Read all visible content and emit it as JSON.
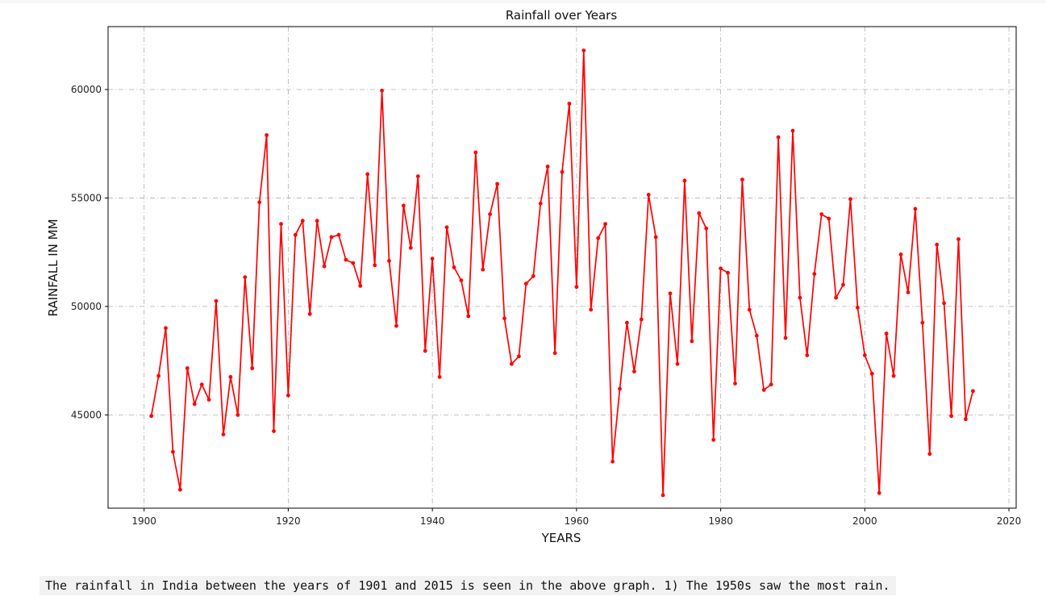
{
  "chart_data": {
    "type": "line",
    "title": "Rainfall over Years",
    "xlabel": "YEARS",
    "ylabel": "RAINFALL IN MM",
    "xlim": [
      1895,
      2021
    ],
    "ylim": [
      40700,
      62900
    ],
    "xticks": [
      1900,
      1920,
      1940,
      1960,
      1980,
      2000,
      2020
    ],
    "yticks": [
      45000,
      50000,
      55000,
      60000
    ],
    "grid": true,
    "grid_style": "dash-dot",
    "line_color": "#ff0000",
    "marker": "circle",
    "series": [
      {
        "x": [
          1901,
          1902,
          1903,
          1904,
          1905,
          1906,
          1907,
          1908,
          1909,
          1910,
          1911,
          1912,
          1913,
          1914,
          1915,
          1916,
          1917,
          1918,
          1919,
          1920,
          1921,
          1922,
          1923,
          1924,
          1925,
          1926,
          1927,
          1928,
          1929,
          1930,
          1931,
          1932,
          1933,
          1934,
          1935,
          1936,
          1937,
          1938,
          1939,
          1940,
          1941,
          1942,
          1943,
          1944,
          1945,
          1946,
          1947,
          1948,
          1949,
          1950,
          1951,
          1952,
          1953,
          1954,
          1955,
          1956,
          1957,
          1958,
          1959,
          1960,
          1961,
          1962,
          1963,
          1964,
          1965,
          1966,
          1967,
          1968,
          1969,
          1970,
          1971,
          1972,
          1973,
          1974,
          1975,
          1976,
          1977,
          1978,
          1979,
          1980,
          1981,
          1982,
          1983,
          1984,
          1985,
          1986,
          1987,
          1988,
          1989,
          1990,
          1991,
          1992,
          1993,
          1994,
          1995,
          1996,
          1997,
          1998,
          1999,
          2000,
          2001,
          2002,
          2003,
          2004,
          2005,
          2006,
          2007,
          2008,
          2009,
          2010,
          2011,
          2012,
          2013,
          2014,
          2015
        ],
        "y": [
          44950,
          46800,
          49000,
          43300,
          41550,
          47150,
          45500,
          46400,
          45700,
          50250,
          44100,
          46750,
          45000,
          51350,
          47150,
          54800,
          57900,
          44250,
          53800,
          45900,
          53300,
          53950,
          49650,
          53950,
          51850,
          53200,
          53300,
          52150,
          52000,
          50950,
          56100,
          51900,
          59950,
          52100,
          49100,
          54650,
          52700,
          56000,
          47950,
          52200,
          46750,
          53650,
          51800,
          51200,
          49550,
          57100,
          51700,
          54250,
          55650,
          49450,
          47350,
          47700,
          51050,
          51400,
          54750,
          56450,
          47850,
          56200,
          59350,
          50900,
          61800,
          49850,
          53150,
          53800,
          42850,
          46200,
          49250,
          47000,
          49400,
          55150,
          53200,
          41300,
          50600,
          47350,
          55800,
          48400,
          54300,
          53600,
          43850,
          51750,
          51550,
          46450,
          55850,
          49850,
          48650,
          46150,
          46400,
          57800,
          48550,
          58100,
          50400,
          47750,
          51500,
          54250,
          54050,
          50400,
          51000,
          54950,
          49950,
          47750,
          46900,
          41400,
          48750,
          46800,
          52400,
          50650,
          54500,
          49250,
          43200,
          52850,
          50150,
          44950,
          53100,
          44800,
          46100
        ]
      }
    ]
  },
  "caption": "The rainfall in India between the years of 1901 and 2015 is seen in the above graph. 1) The 1950s saw the most rain."
}
